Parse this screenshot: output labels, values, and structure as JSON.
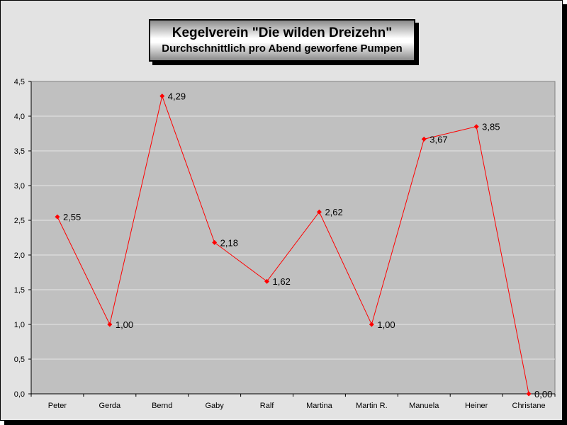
{
  "chart_data": {
    "type": "line",
    "title": "Kegelverein \"Die wilden Dreizehn\"",
    "subtitle": "Durchschnittlich pro Abend geworfene Pumpen",
    "categories": [
      "Peter",
      "Gerda",
      "Bernd",
      "Gaby",
      "Ralf",
      "Martina",
      "Martin R.",
      "Manuela",
      "Heiner",
      "Christane"
    ],
    "values": [
      2.55,
      1.0,
      4.29,
      2.18,
      1.62,
      2.62,
      1.0,
      3.67,
      3.85,
      0.0
    ],
    "data_labels": [
      "2,55",
      "1,00",
      "4,29",
      "2,18",
      "1,62",
      "2,62",
      "1,00",
      "3,67",
      "3,85",
      "0,00"
    ],
    "yticks": [
      "0,0",
      "0,5",
      "1,0",
      "1,5",
      "2,0",
      "2,5",
      "3,0",
      "3,5",
      "4,0",
      "4,5"
    ],
    "ylim": [
      0,
      4.5
    ],
    "grid": true,
    "legend": "none",
    "colors": {
      "line": "#ff0000",
      "plot_bg": "#c0c0c0",
      "chart_bg": "#e3e3e3",
      "grid": "#e6e6e6"
    }
  }
}
